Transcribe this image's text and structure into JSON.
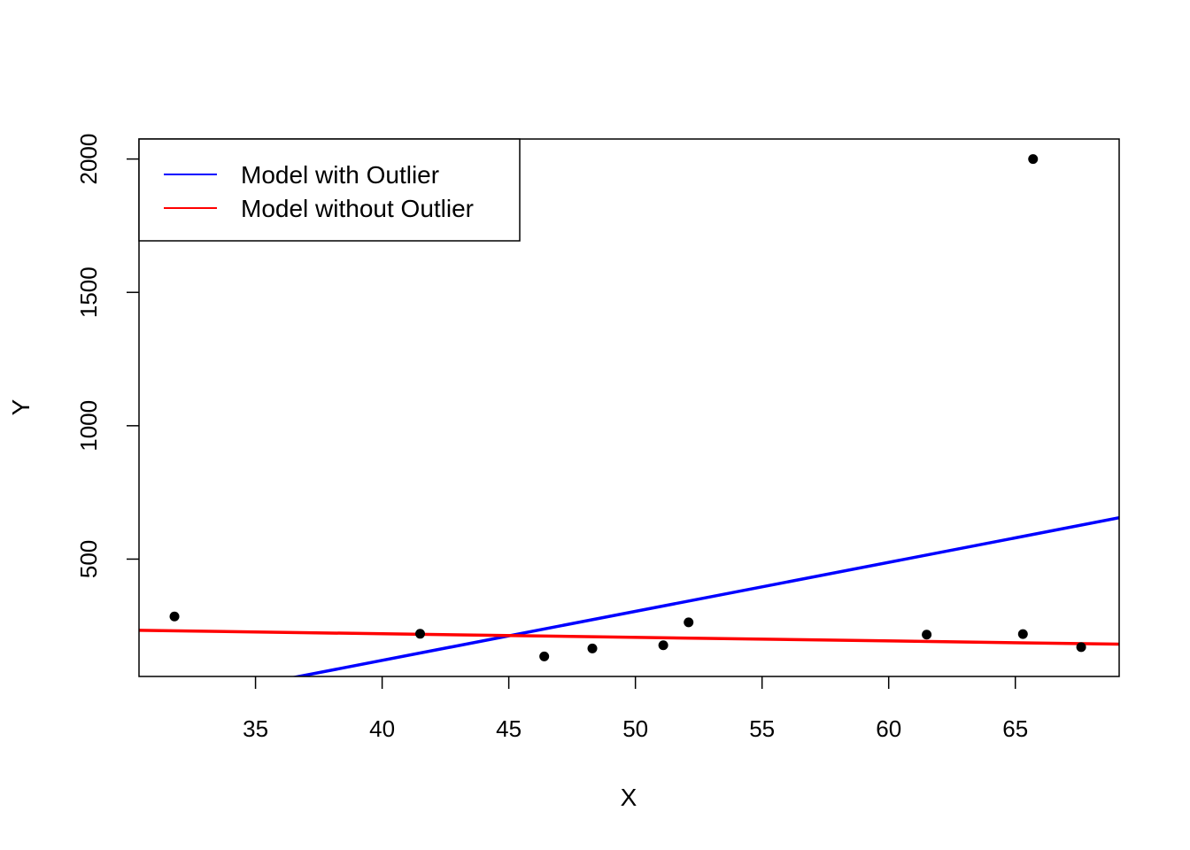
{
  "chart_data": {
    "type": "scatter",
    "xlabel": "X",
    "ylabel": "Y",
    "xlim": [
      30.4,
      69.1
    ],
    "ylim": [
      60,
      2075
    ],
    "x_ticks": [
      35,
      40,
      45,
      50,
      55,
      60,
      65
    ],
    "y_ticks": [
      500,
      1000,
      1500,
      2000
    ],
    "grid": false,
    "legend_position": "top-left",
    "points": {
      "x": [
        31.8,
        41.5,
        46.4,
        48.3,
        51.1,
        52.1,
        61.5,
        65.3,
        65.7,
        67.6
      ],
      "y": [
        285,
        220,
        135,
        165,
        177,
        263,
        217,
        219,
        2000,
        170
      ]
    },
    "series": [
      {
        "name": "Model with Outlier",
        "color": "#0000ff",
        "kind": "line",
        "x": [
          30.4,
          69.1
        ],
        "y": [
          -56,
          655
        ]
      },
      {
        "name": "Model without Outlier",
        "color": "#ff0000",
        "kind": "line",
        "x": [
          30.4,
          69.1
        ],
        "y": [
          233,
          181
        ]
      }
    ]
  }
}
